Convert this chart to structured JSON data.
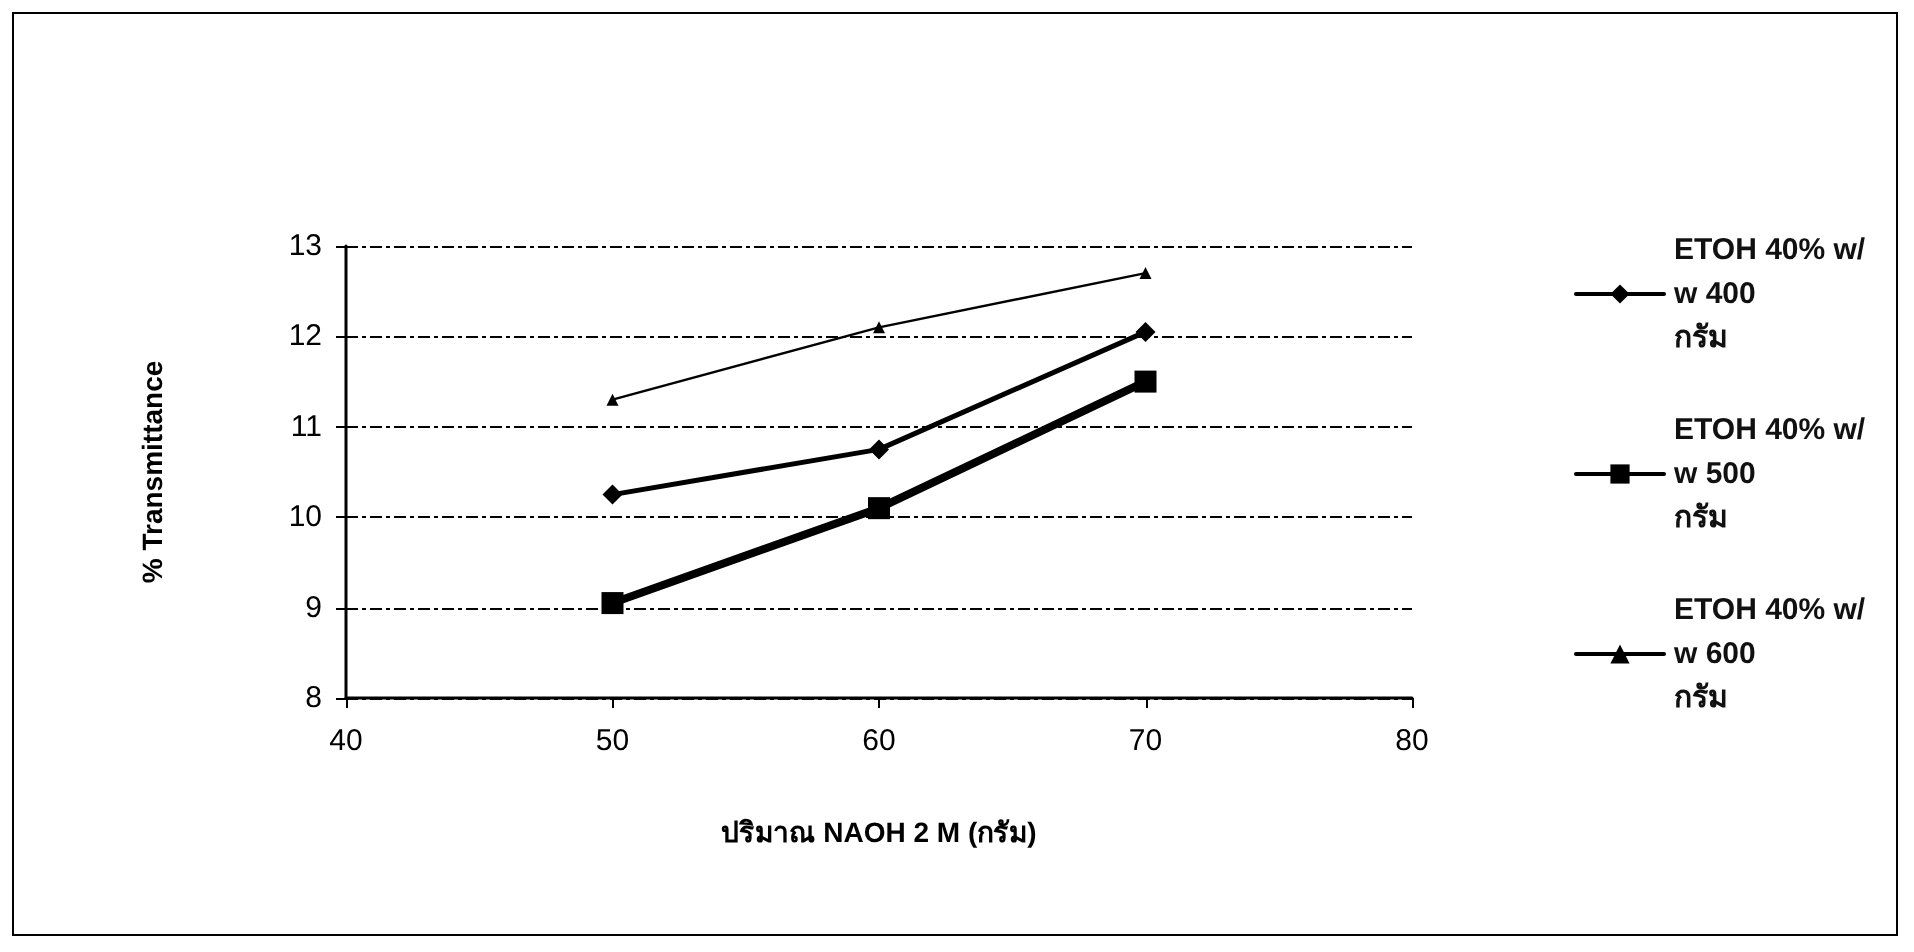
{
  "chart_data": {
    "type": "line",
    "xlabel": "ปริมาณ NAOH 2 M (กรัม)",
    "ylabel": "% Transmittance",
    "x": [
      50,
      60,
      70
    ],
    "series": [
      {
        "name": "ETOH 40% w/w 400 กรัม",
        "color": "#000000",
        "marker": "diamond",
        "values": [
          10.25,
          10.75,
          12.05
        ]
      },
      {
        "name": "ETOH 40% w/w 500 กรัม",
        "color": "#000000",
        "marker": "square",
        "values": [
          9.05,
          10.1,
          11.5
        ]
      },
      {
        "name": "ETOH 40% w/w 600 กรัม",
        "color": "#000000",
        "marker": "triangle",
        "values": [
          11.3,
          12.1,
          12.7
        ]
      }
    ],
    "xlim": [
      40,
      80
    ],
    "xticks": [
      40,
      50,
      60,
      70,
      80
    ],
    "ylim": [
      8,
      13
    ],
    "yticks": [
      8,
      9,
      10,
      11,
      12,
      13
    ],
    "grid": "y",
    "legend": "right",
    "line_style": "solid"
  }
}
